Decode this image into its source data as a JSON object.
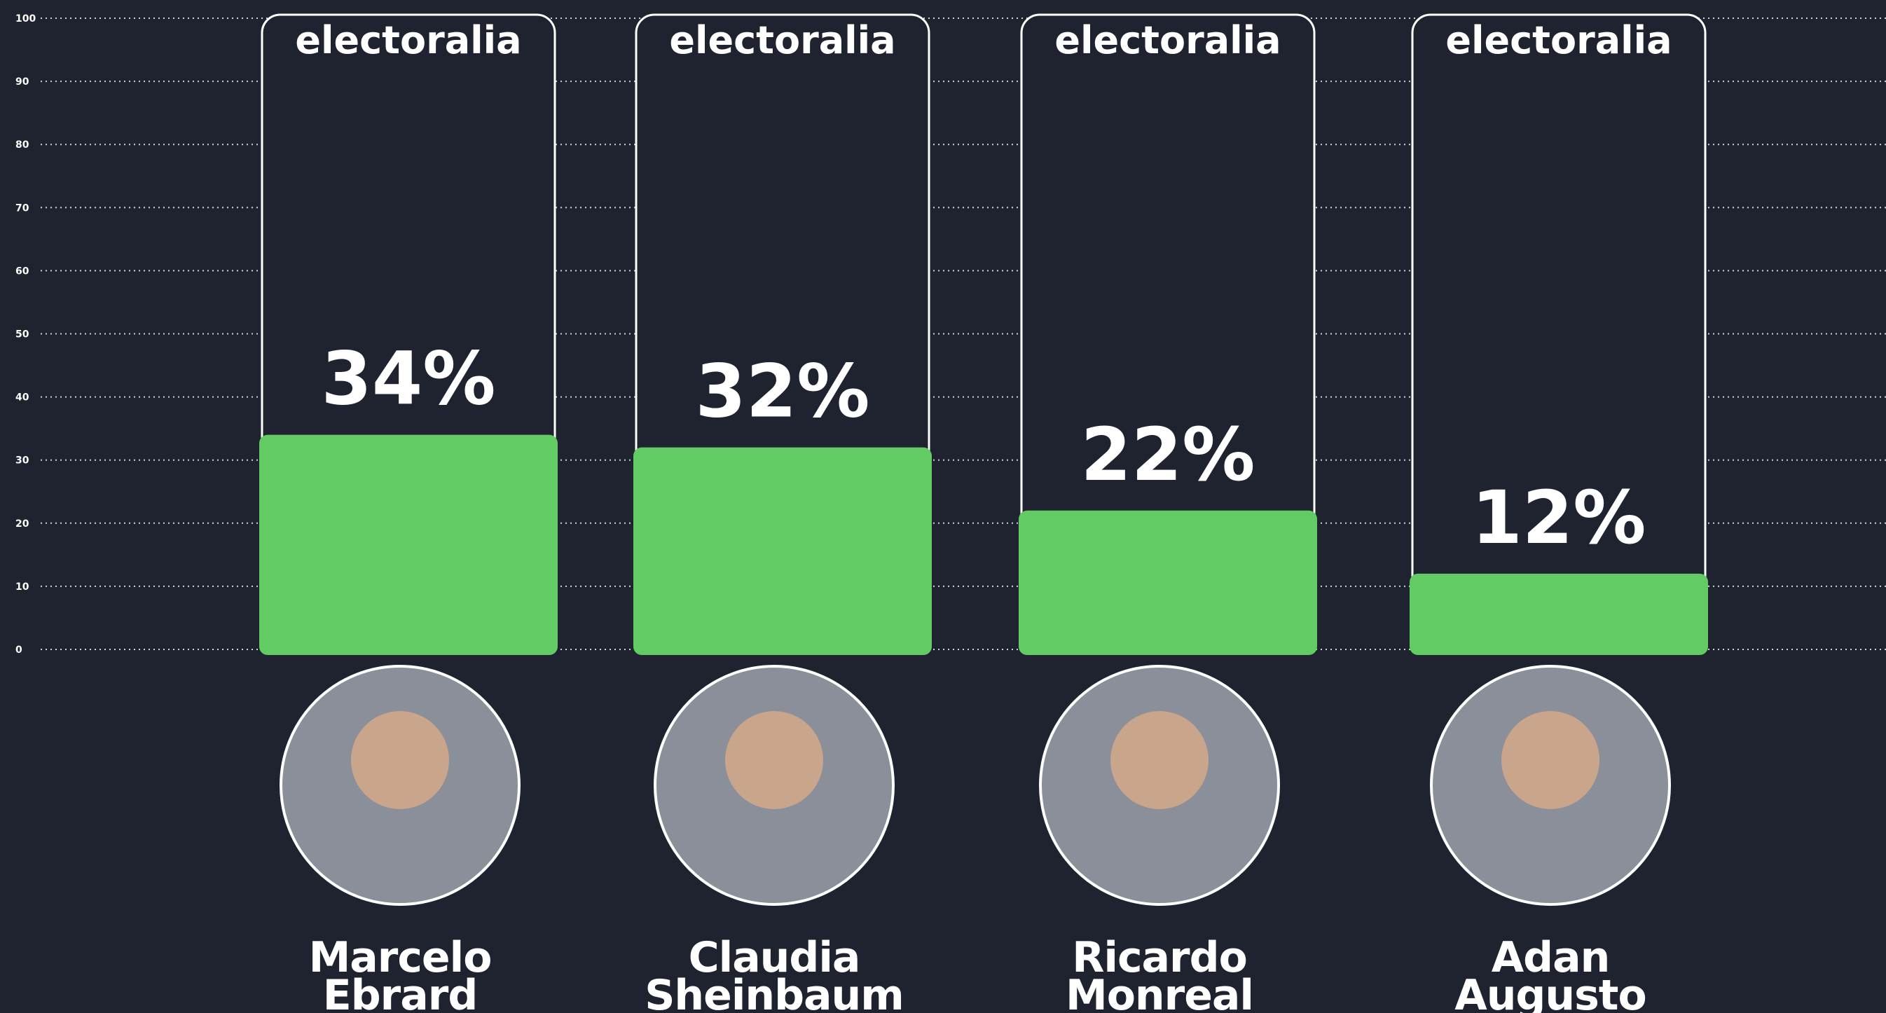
{
  "chart_data": {
    "type": "bar",
    "brand": "electoralia",
    "categories": [
      "Marcelo Ebrard",
      "Claudia Sheinbaum",
      "Ricardo Monreal",
      "Adan Augusto"
    ],
    "values": [
      34,
      32,
      22,
      12
    ],
    "value_labels": [
      "34%",
      "32%",
      "22%",
      "12%"
    ],
    "color": "#63cb63",
    "ylim": [
      0,
      100
    ],
    "yticks": [
      0,
      10,
      20,
      30,
      40,
      50,
      60,
      70,
      80,
      90,
      100
    ],
    "grid": true
  }
}
